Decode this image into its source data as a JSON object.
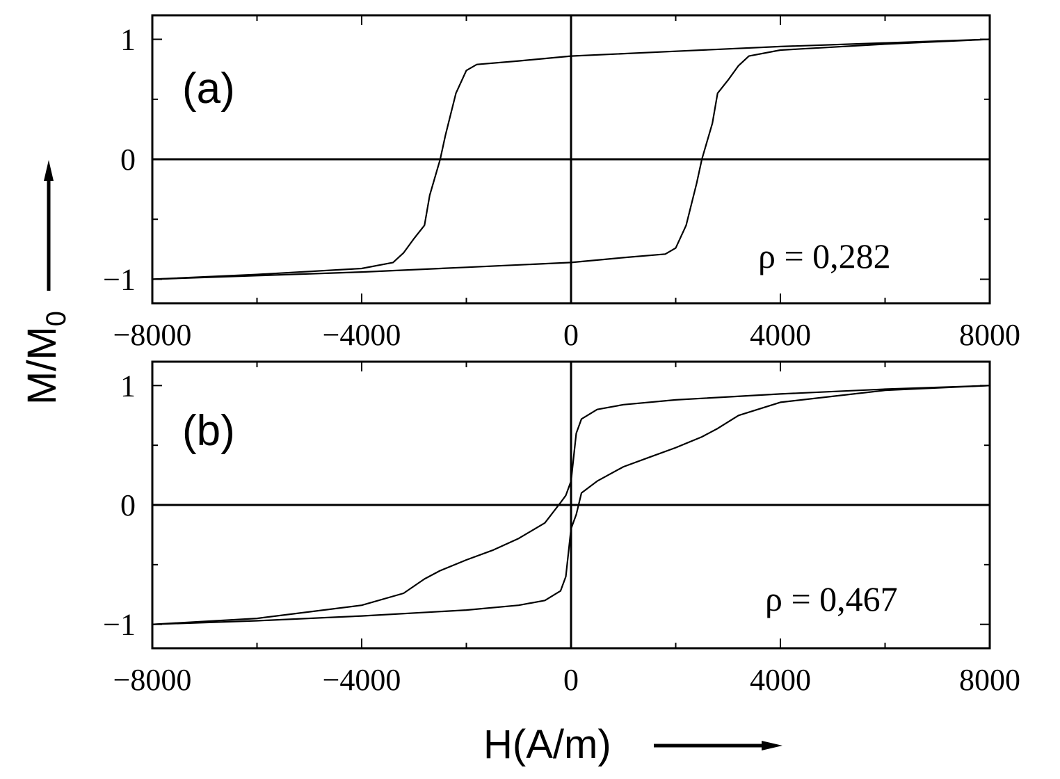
{
  "chart_data": [
    {
      "type": "line",
      "panel_label": "(a)",
      "annotation": "ρ = 0,282",
      "xlim": [
        -8000,
        8000
      ],
      "ylim": [
        -1.2,
        1.2
      ],
      "x_ticks": [
        -8000,
        -4000,
        0,
        4000,
        8000
      ],
      "x_tick_labels": [
        "−8000",
        "−4000",
        "0",
        "4000",
        "8000"
      ],
      "y_ticks": [
        -1,
        0,
        1
      ],
      "y_tick_labels": [
        "−1",
        "0",
        "1"
      ],
      "zero_lines": true,
      "series": [
        {
          "branch": "descending",
          "x": [
            8000,
            6000,
            4000,
            2000,
            0,
            -1000,
            -1800,
            -2000,
            -2200,
            -2400,
            -2500,
            -2700,
            -2800,
            -3000,
            -3200,
            -3400,
            -4000,
            -6000,
            -8000
          ],
          "y": [
            1.0,
            0.97,
            0.94,
            0.9,
            0.86,
            0.82,
            0.79,
            0.74,
            0.55,
            0.2,
            0.0,
            -0.3,
            -0.55,
            -0.66,
            -0.78,
            -0.86,
            -0.91,
            -0.96,
            -1.0
          ]
        },
        {
          "branch": "ascending",
          "x": [
            -8000,
            -6000,
            -4000,
            -2000,
            0,
            1000,
            1800,
            2000,
            2200,
            2400,
            2500,
            2700,
            2800,
            3000,
            3200,
            3400,
            4000,
            6000,
            8000
          ],
          "y": [
            -1.0,
            -0.97,
            -0.94,
            -0.9,
            -0.86,
            -0.82,
            -0.79,
            -0.74,
            -0.55,
            -0.2,
            0.0,
            0.3,
            0.55,
            0.66,
            0.78,
            0.86,
            0.91,
            0.96,
            1.0
          ]
        }
      ]
    },
    {
      "type": "line",
      "panel_label": "(b)",
      "annotation": "ρ = 0,467",
      "xlim": [
        -8000,
        8000
      ],
      "ylim": [
        -1.2,
        1.2
      ],
      "x_ticks": [
        -8000,
        -4000,
        0,
        4000,
        8000
      ],
      "x_tick_labels": [
        "−8000",
        "−4000",
        "0",
        "4000",
        "8000"
      ],
      "y_ticks": [
        -1,
        0,
        1
      ],
      "y_tick_labels": [
        "−1",
        "0",
        "1"
      ],
      "zero_lines": true,
      "series": [
        {
          "branch": "descending",
          "x": [
            8000,
            6000,
            4000,
            2000,
            1000,
            500,
            200,
            100,
            0,
            -100,
            -200,
            -500,
            -1000,
            -1500,
            -2000,
            -2500,
            -2800,
            -3200,
            -4000,
            -6000,
            -8000
          ],
          "y": [
            1.0,
            0.97,
            0.93,
            0.88,
            0.84,
            0.8,
            0.72,
            0.6,
            0.2,
            0.08,
            0.02,
            -0.15,
            -0.28,
            -0.38,
            -0.46,
            -0.55,
            -0.62,
            -0.74,
            -0.84,
            -0.95,
            -1.0
          ]
        },
        {
          "branch": "ascending",
          "x": [
            -8000,
            -6000,
            -4000,
            -2000,
            -1000,
            -500,
            -200,
            -100,
            0,
            100,
            200,
            500,
            1000,
            1500,
            2000,
            2500,
            2800,
            3200,
            4000,
            6000,
            8000
          ],
          "y": [
            -1.0,
            -0.97,
            -0.93,
            -0.88,
            -0.84,
            -0.8,
            -0.72,
            -0.6,
            -0.2,
            -0.08,
            0.1,
            0.2,
            0.32,
            0.4,
            0.48,
            0.57,
            0.64,
            0.75,
            0.86,
            0.96,
            1.0
          ]
        }
      ]
    }
  ],
  "ylabel_main": "M/M",
  "ylabel_sub": "0",
  "xlabel": "H(A/m)"
}
